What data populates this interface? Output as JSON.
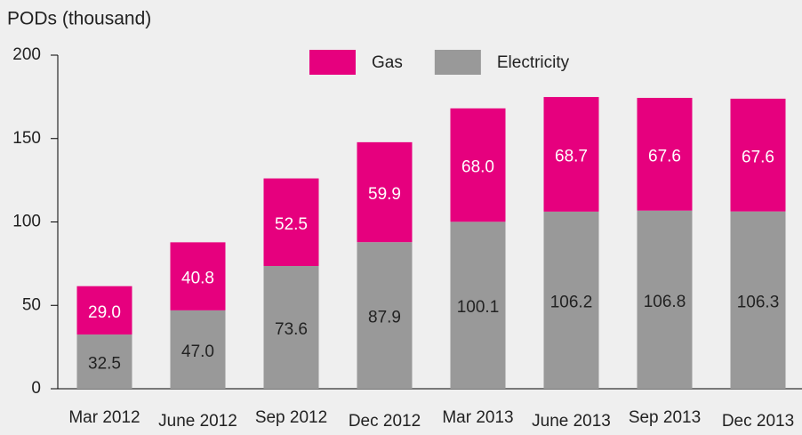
{
  "chart_data": {
    "type": "stacked_bar",
    "title": "PODs (thousand)",
    "categories": [
      "Mar 2012",
      "June 2012",
      "Sep 2012",
      "Dec 2012",
      "Mar 2013",
      "June 2013",
      "Sep 2013",
      "Dec 2013"
    ],
    "series": [
      {
        "name": "Electricity",
        "color": "#999999",
        "values": [
          32.5,
          47.0,
          73.6,
          87.9,
          100.1,
          106.2,
          106.8,
          106.3
        ],
        "value_labels": [
          "32.5",
          "47.0",
          "73.6",
          "87.9",
          "100.1",
          "106.2",
          "106.8",
          "106.3"
        ]
      },
      {
        "name": "Gas",
        "color": "#e6007e",
        "values": [
          29.0,
          40.8,
          52.5,
          59.9,
          68.0,
          68.7,
          67.6,
          67.6
        ],
        "value_labels": [
          "29.0",
          "40.8",
          "52.5",
          "59.9",
          "68.0",
          "68.7",
          "67.6",
          "67.6"
        ]
      }
    ],
    "legend_order": [
      "Gas",
      "Electricity"
    ],
    "ylim": [
      0,
      200
    ],
    "yticks": [
      0,
      50,
      100,
      150,
      200
    ]
  }
}
